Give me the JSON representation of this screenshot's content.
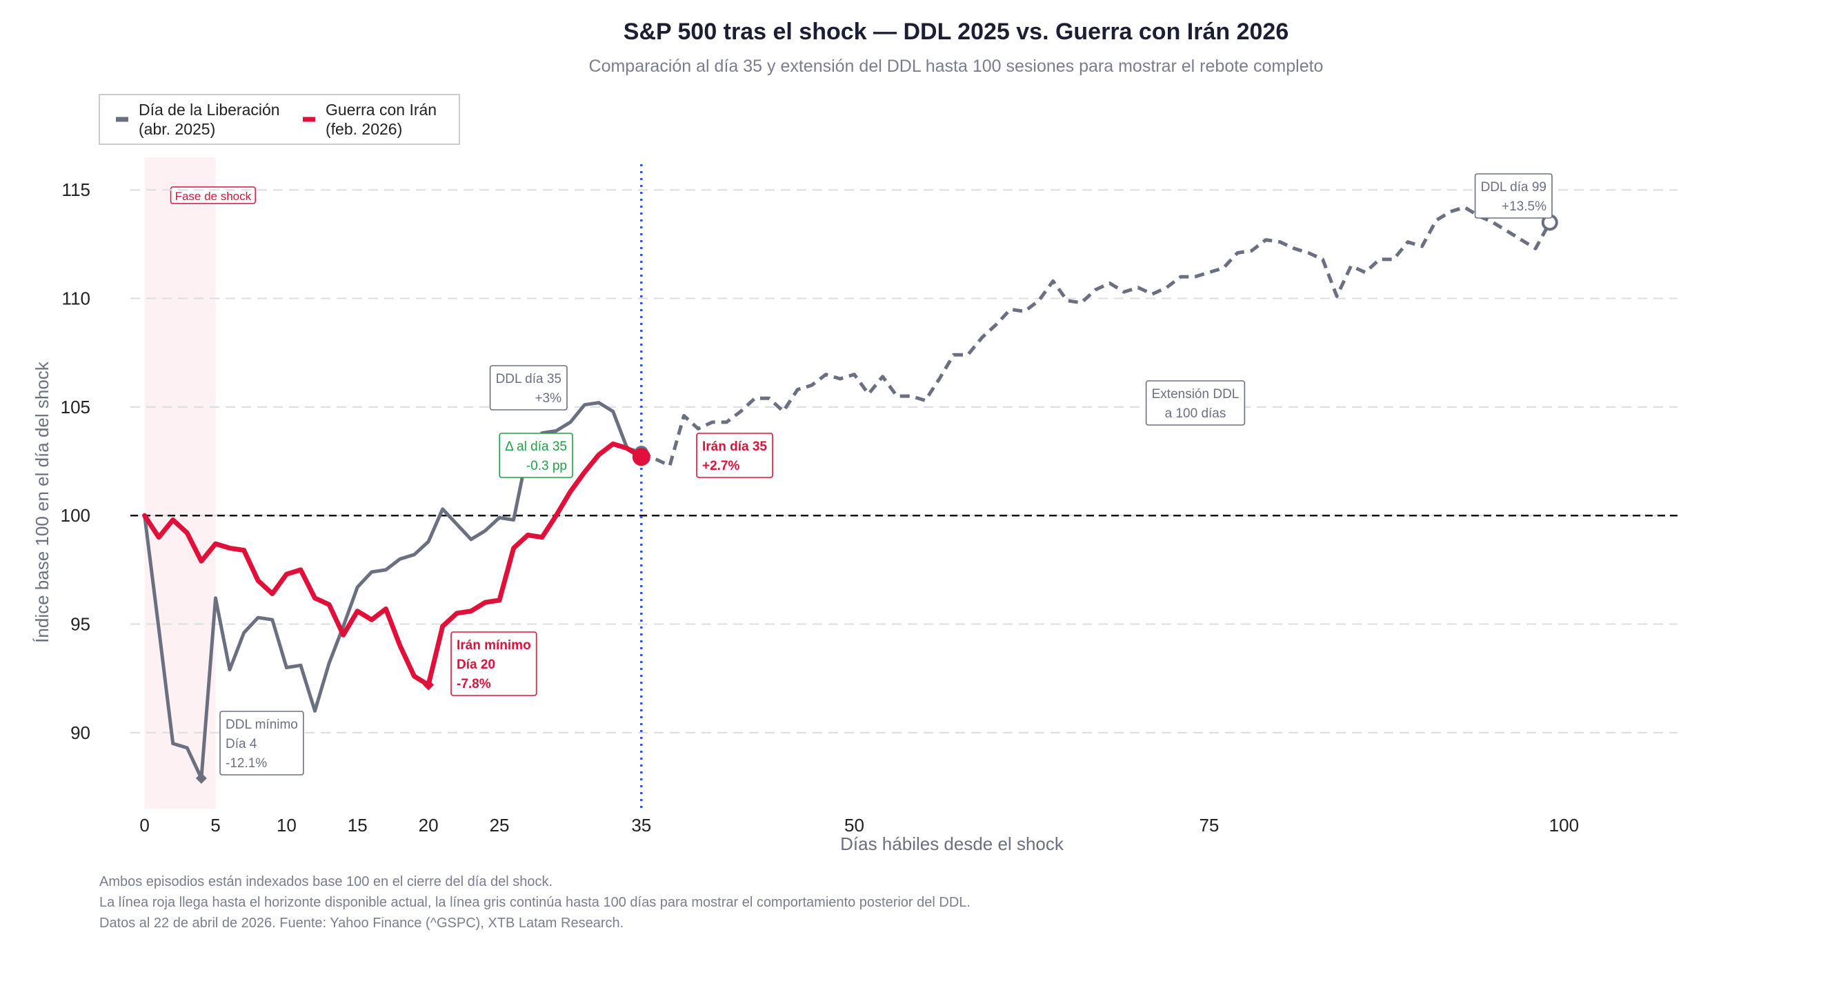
{
  "chart_data": {
    "type": "line",
    "title": "S&P 500 tras el shock — DDL 2025 vs. Guerra con Irán 2026",
    "subtitle": "Comparación al día 35 y extensión del DDL hasta 100 sesiones para mostrar el rebote completo",
    "xlabel": "Días hábiles desde el shock",
    "ylabel": "Índice base 100 en el día del shock",
    "xlim": [
      -1,
      108
    ],
    "ylim": [
      86.5,
      116.5
    ],
    "xticks": [
      0,
      5,
      10,
      15,
      20,
      25,
      35,
      50,
      75,
      100
    ],
    "yticks": [
      90,
      95,
      100,
      105,
      110,
      115
    ],
    "grid": "horizontal dashed",
    "legend_position": "top-left",
    "legend": [
      {
        "label_line1": "Día de la Liberación",
        "label_line2": "(abr. 2025)",
        "color": "#6b7080"
      },
      {
        "label_line1": "Guerra con Irán",
        "label_line2": "(feb. 2026)",
        "color": "#e0103a"
      }
    ],
    "shock_band": {
      "x_start": 0,
      "x_end": 5,
      "label": "Fase de shock"
    },
    "baseline": 100,
    "vline_x": 35,
    "series": [
      {
        "name": "Día de la Liberación (abr. 2025)",
        "color": "#6b7080",
        "x": [
          0,
          1,
          2,
          3,
          4,
          5,
          6,
          7,
          8,
          9,
          10,
          11,
          12,
          13,
          14,
          15,
          16,
          17,
          18,
          19,
          20,
          21,
          22,
          23,
          24,
          25,
          26,
          27,
          28,
          29,
          30,
          31,
          32,
          33,
          34,
          35
        ],
        "y": [
          100,
          94.8,
          89.5,
          89.3,
          87.9,
          96.2,
          92.9,
          94.6,
          95.3,
          95.2,
          93.0,
          93.1,
          91.0,
          93.2,
          94.9,
          96.7,
          97.4,
          97.5,
          98.0,
          98.2,
          98.8,
          100.3,
          99.6,
          98.9,
          99.3,
          99.9,
          99.8,
          103.0,
          103.8,
          103.9,
          104.3,
          105.1,
          105.2,
          104.8,
          103.1,
          102.9
        ]
      },
      {
        "name": "Extensión DDL",
        "color": "#6b7080",
        "dashed": true,
        "x": [
          35,
          36,
          37,
          38,
          39,
          40,
          41,
          42,
          43,
          44,
          45,
          46,
          47,
          48,
          49,
          50,
          51,
          52,
          53,
          54,
          55,
          56,
          57,
          58,
          59,
          60,
          61,
          62,
          63,
          64,
          65,
          66,
          67,
          68,
          69,
          70,
          71,
          72,
          73,
          74,
          75,
          76,
          77,
          78,
          79,
          80,
          81,
          82,
          83,
          84,
          85,
          86,
          87,
          88,
          89,
          90,
          91,
          92,
          93,
          94,
          95,
          96,
          97,
          98,
          99
        ],
        "y": [
          102.9,
          102.6,
          102.3,
          104.6,
          104.0,
          104.3,
          104.3,
          104.8,
          105.4,
          105.4,
          104.8,
          105.8,
          106.0,
          106.5,
          106.3,
          106.5,
          105.6,
          106.4,
          105.5,
          105.5,
          105.3,
          106.3,
          107.4,
          107.4,
          108.2,
          108.8,
          109.5,
          109.4,
          109.9,
          110.8,
          109.9,
          109.8,
          110.4,
          110.7,
          110.3,
          110.5,
          110.2,
          110.5,
          111.0,
          111.0,
          111.2,
          111.4,
          112.1,
          112.2,
          112.7,
          112.6,
          112.3,
          112.1,
          111.8,
          110.1,
          111.5,
          111.2,
          111.8,
          111.8,
          112.6,
          112.4,
          113.6,
          114.0,
          114.2,
          113.8,
          113.5,
          113.1,
          112.7,
          112.3,
          113.5
        ]
      },
      {
        "name": "Guerra con Irán (feb. 2026)",
        "color": "#e0103a",
        "x": [
          0,
          1,
          2,
          3,
          4,
          5,
          6,
          7,
          8,
          9,
          10,
          11,
          12,
          13,
          14,
          15,
          16,
          17,
          18,
          19,
          20,
          21,
          22,
          23,
          24,
          25,
          26,
          27,
          28,
          29,
          30,
          31,
          32,
          33,
          34,
          35
        ],
        "y": [
          100,
          99.0,
          99.8,
          99.2,
          97.9,
          98.7,
          98.5,
          98.4,
          97.0,
          96.4,
          97.3,
          97.5,
          96.2,
          95.9,
          94.5,
          95.6,
          95.2,
          95.7,
          94.0,
          92.6,
          92.2,
          94.9,
          95.5,
          95.6,
          96.0,
          96.1,
          98.5,
          99.1,
          99.0,
          100.0,
          101.1,
          102.0,
          102.8,
          103.3,
          103.1,
          102.7
        ]
      }
    ],
    "markers": [
      {
        "id": "ddl-min",
        "x": 4,
        "y": 87.9,
        "shape": "diamond",
        "color": "#6b7080"
      },
      {
        "id": "iran-min",
        "x": 20,
        "y": 92.2,
        "shape": "diamond",
        "color": "#e0103a"
      },
      {
        "id": "ddl-35",
        "x": 35,
        "y": 102.9,
        "shape": "circle",
        "color": "#6b7080"
      },
      {
        "id": "iran-35",
        "x": 35,
        "y": 102.7,
        "shape": "circle",
        "color": "#e0103a"
      },
      {
        "id": "ddl-99",
        "x": 99,
        "y": 113.5,
        "shape": "ring",
        "color": "#6b7080"
      }
    ],
    "annotations": [
      {
        "id": "ddl-min",
        "lines": [
          "DDL mínimo",
          "Día 4",
          "-12.1%"
        ],
        "color": "#6b7080",
        "bold": false
      },
      {
        "id": "iran-min",
        "lines": [
          "Irán mínimo",
          "Día 20",
          "-7.8%"
        ],
        "color": "#e0103a",
        "bold": true
      },
      {
        "id": "ddl-35",
        "lines": [
          "DDL día 35",
          "+3%"
        ],
        "color": "#6b7080",
        "bold": false
      },
      {
        "id": "delta-35",
        "lines": [
          "Δ al día 35",
          "-0.3 pp"
        ],
        "color": "#22a046",
        "bold": false
      },
      {
        "id": "iran-35",
        "lines": [
          "Irán día 35",
          "+2.7%"
        ],
        "color": "#e0103a",
        "bold": true
      },
      {
        "id": "ext-ddl",
        "lines": [
          "Extensión DDL",
          "a 100 días"
        ],
        "color": "#6b7080",
        "bold": false
      },
      {
        "id": "ddl-99",
        "lines": [
          "DDL día 99",
          "+13.5%"
        ],
        "color": "#6b7080",
        "bold": false
      }
    ]
  },
  "footnotes": [
    "Ambos episodios están indexados base 100 en el cierre del día del shock.",
    "La línea roja llega hasta el horizonte disponible actual, la línea gris continúa hasta 100 días para mostrar el comportamiento posterior del DDL.",
    "Datos al 22 de abril de 2026. Fuente: Yahoo Finance (^GSPC), XTB Latam Research."
  ]
}
